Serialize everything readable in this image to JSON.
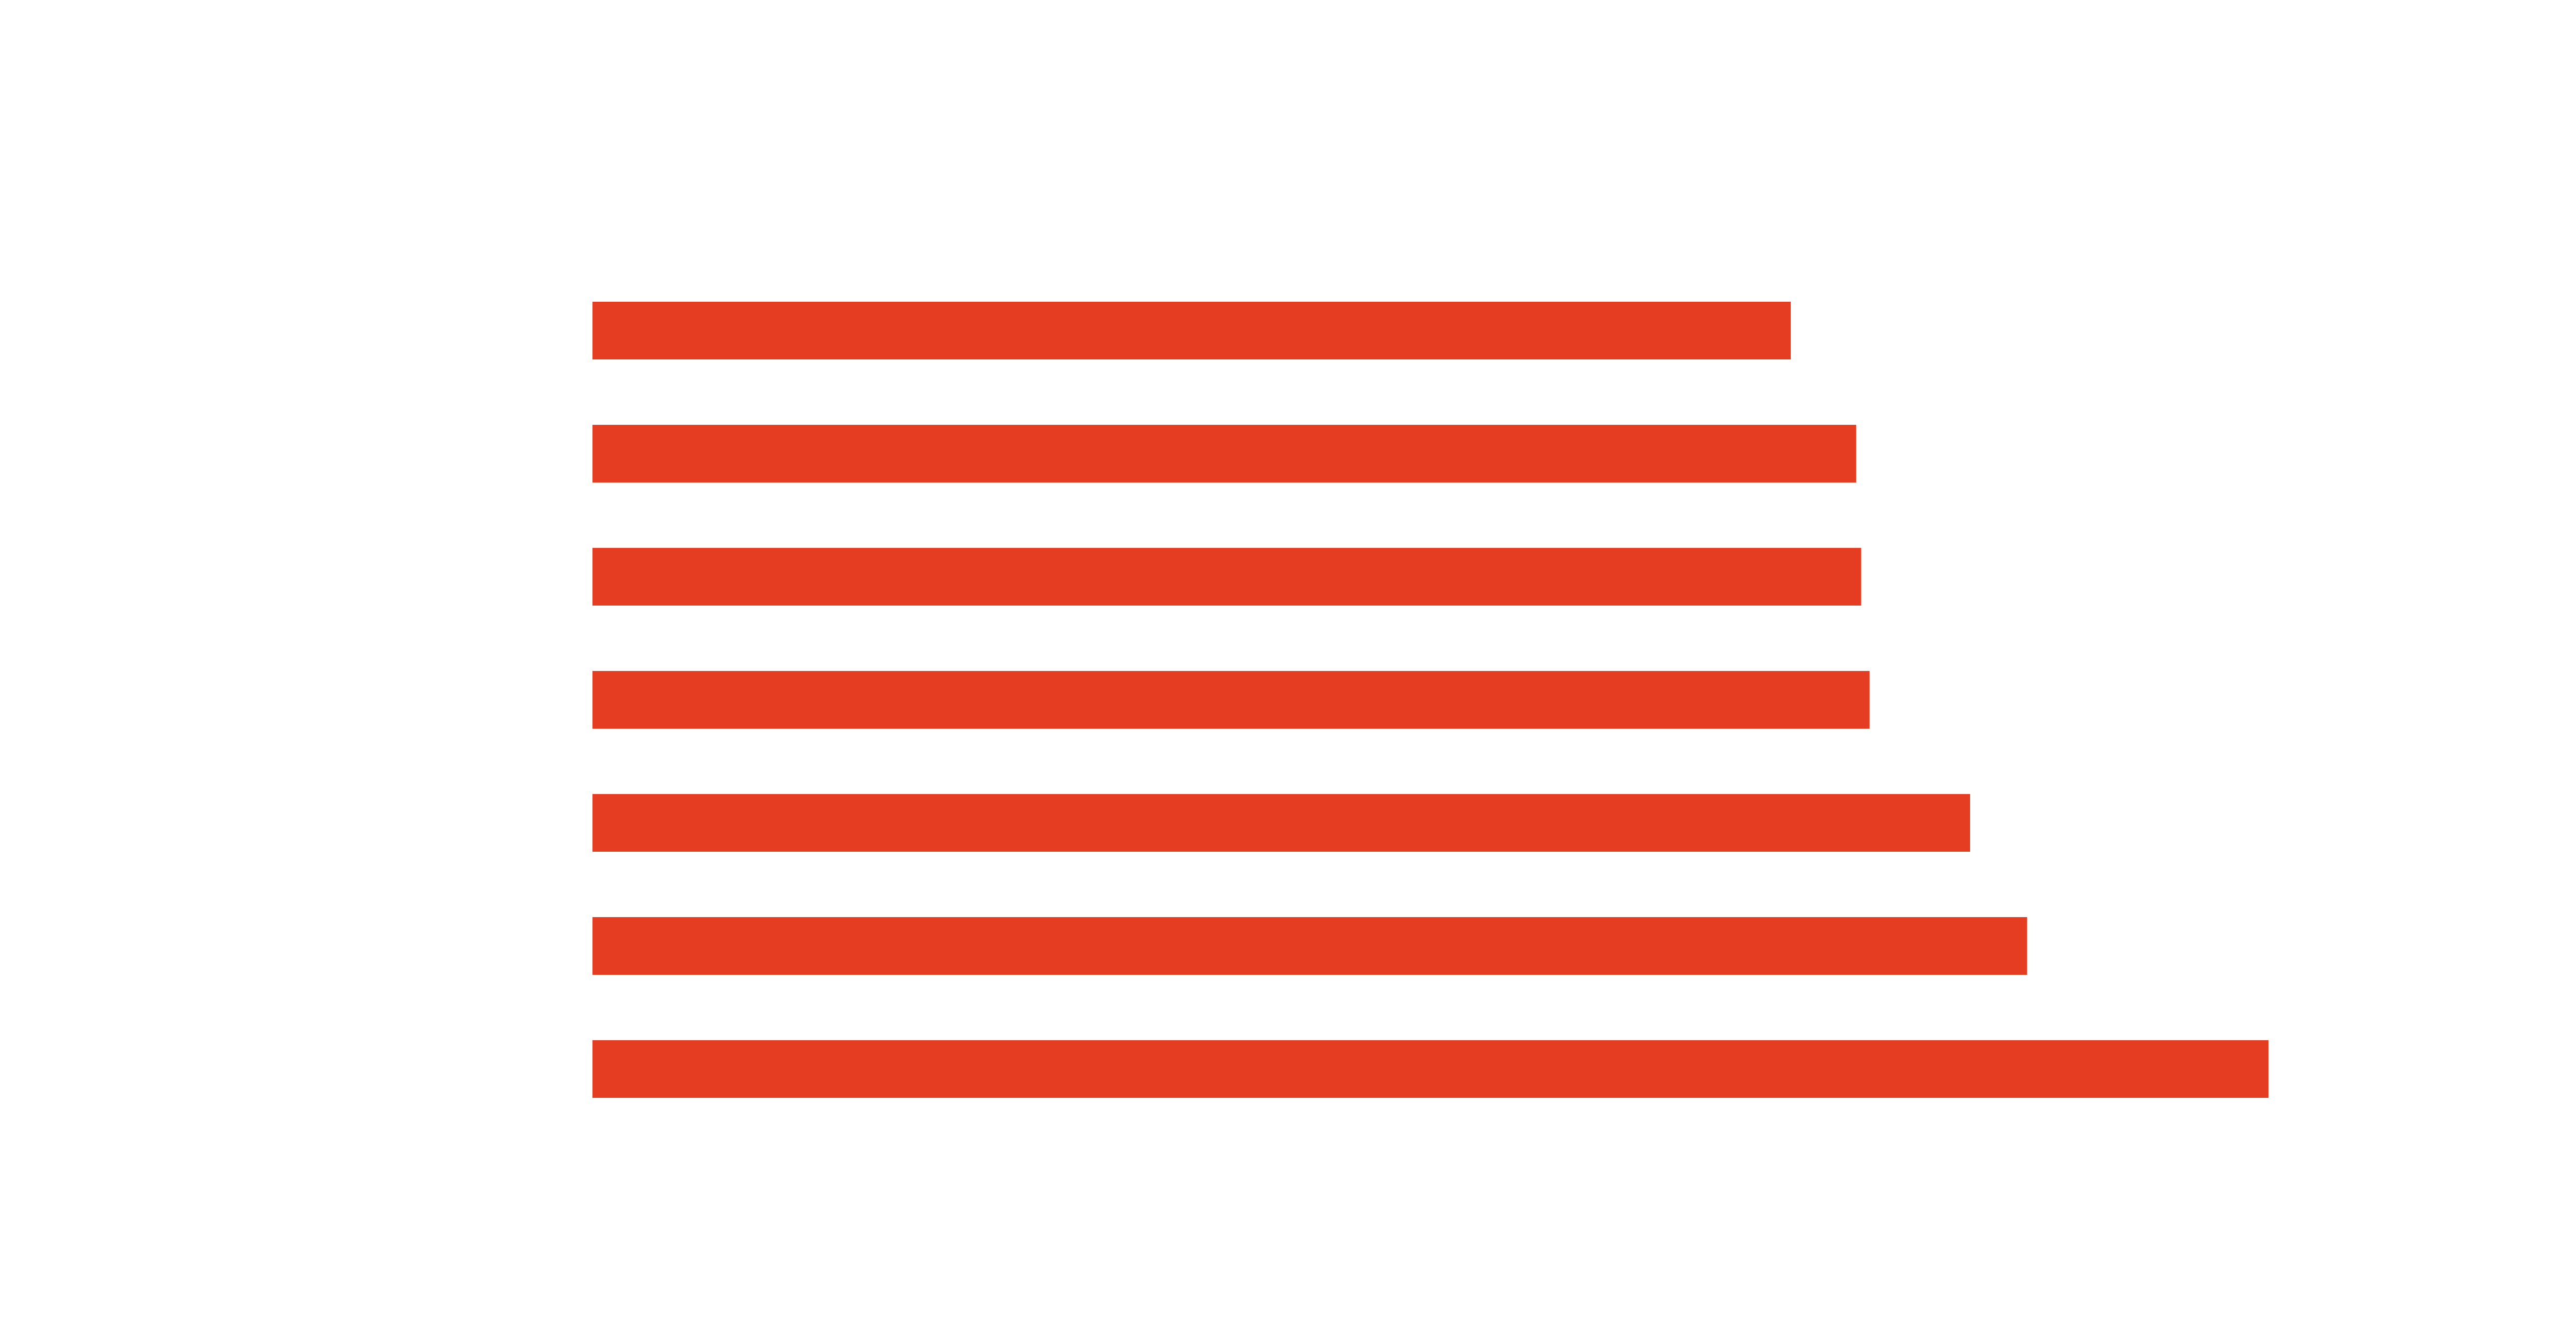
{
  "chart_data": {
    "type": "bar",
    "orientation": "horizontal",
    "categories": [
      "",
      "",
      "",
      "",
      "",
      "",
      ""
    ],
    "values": [
      71.5,
      75.4,
      75.7,
      76.2,
      82.2,
      85.6,
      100
    ],
    "xlim": [
      0,
      100
    ],
    "grid": false,
    "legend": "none",
    "title": "",
    "xlabel": "",
    "ylabel": "",
    "bar_color": "#e43d22"
  }
}
